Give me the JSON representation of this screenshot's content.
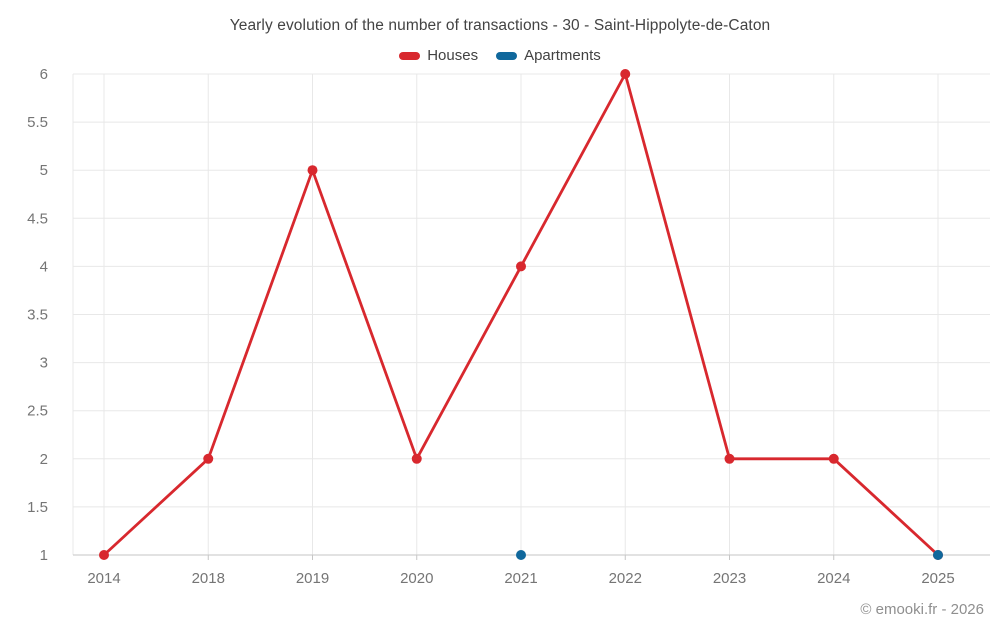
{
  "header": {
    "title": "Yearly evolution of the number of transactions - 30 - Saint-Hippolyte-de-Caton"
  },
  "legend": {
    "items": [
      {
        "label": "Houses",
        "color": "#d8282e"
      },
      {
        "label": "Apartments",
        "color": "#10689c"
      }
    ]
  },
  "chart_data": {
    "type": "line",
    "title": "Yearly evolution of the number of transactions - 30 - Saint-Hippolyte-de-Caton",
    "categories": [
      "2014",
      "2018",
      "2019",
      "2020",
      "2021",
      "2022",
      "2023",
      "2024",
      "2025"
    ],
    "series": [
      {
        "name": "Houses",
        "color": "#d8282e",
        "values": [
          1,
          2,
          5,
          2,
          4,
          6,
          2,
          2,
          1
        ]
      },
      {
        "name": "Apartments",
        "color": "#10689c",
        "values": [
          null,
          null,
          null,
          null,
          1,
          null,
          null,
          null,
          1
        ]
      }
    ],
    "xlabel": "",
    "ylabel": "",
    "ylim": [
      1,
      6
    ],
    "ytick_step": 0.5,
    "grid": true,
    "legend_position": "top"
  },
  "footer": {
    "copyright": "© emooki.fr - 2026"
  },
  "colors": {
    "grid": "#e8e8e8",
    "axis_line": "#c6c6c6",
    "tick_text": "#757575",
    "title_text": "#434343",
    "footer_text": "#8f8f8f"
  }
}
